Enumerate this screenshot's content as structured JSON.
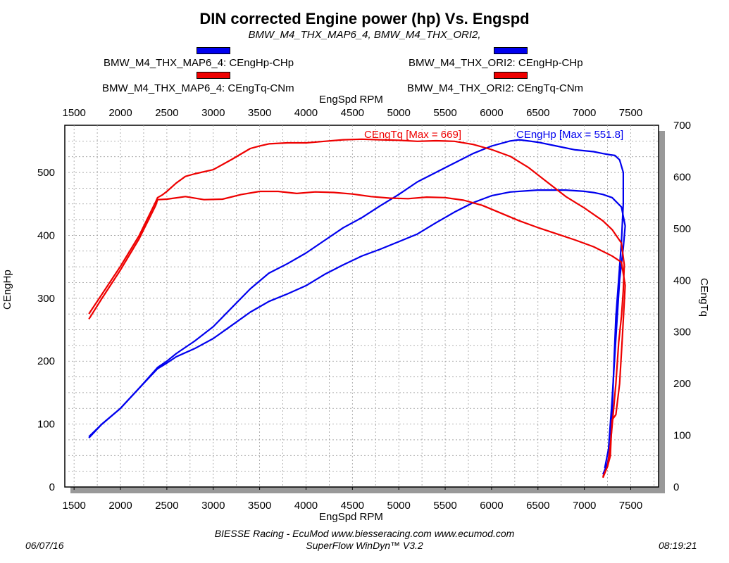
{
  "chart_data": {
    "type": "line",
    "title": "DIN corrected Engine power (hp) Vs. Engspd",
    "subtitle": "BMW_M4_THX_MAP6_4, BMW_M4_THX_ORI2,",
    "xlabel": "EngSpd RPM",
    "ylabel_left": "CEngHp",
    "ylabel_right": "CEngTq",
    "xlim": [
      1400,
      7800
    ],
    "ylim_left": [
      0,
      575
    ],
    "ylim_right": [
      0,
      700
    ],
    "x_ticks": [
      1500,
      2000,
      2500,
      3000,
      3500,
      4000,
      4500,
      5000,
      5500,
      6000,
      6500,
      7000,
      7500
    ],
    "y_ticks_left": [
      0,
      100,
      200,
      300,
      400,
      500
    ],
    "y_ticks_right": [
      0,
      100,
      200,
      300,
      400,
      500,
      600,
      700
    ],
    "grid": true,
    "legend": [
      {
        "label": "BMW_M4_THX_MAP6_4: CEngHp-CHp",
        "color": "#0000ee"
      },
      {
        "label": "BMW_M4_THX_MAP6_4: CEngTq-CNm",
        "color": "#ee0000"
      },
      {
        "label": "BMW_M4_THX_ORI2: CEngHp-CHp",
        "color": "#0000ee"
      },
      {
        "label": "BMW_M4_THX_ORI2: CEngTq-CNm",
        "color": "#ee0000"
      }
    ],
    "annotations": [
      {
        "text": "CEngTq [Max = 669]",
        "color": "#ee0000"
      },
      {
        "text": "CEngHp [Max = 551.8]",
        "color": "#0000ee"
      }
    ],
    "series": [
      {
        "axis": "left",
        "color": "#0000ee",
        "points": [
          [
            1660,
            80
          ],
          [
            1800,
            100
          ],
          [
            2000,
            125
          ],
          [
            2200,
            157
          ],
          [
            2400,
            190
          ],
          [
            2500,
            200
          ],
          [
            2600,
            212
          ],
          [
            2800,
            232
          ],
          [
            3000,
            255
          ],
          [
            3200,
            285
          ],
          [
            3400,
            315
          ],
          [
            3600,
            340
          ],
          [
            3800,
            355
          ],
          [
            4000,
            372
          ],
          [
            4200,
            392
          ],
          [
            4400,
            412
          ],
          [
            4600,
            428
          ],
          [
            4800,
            447
          ],
          [
            5000,
            465
          ],
          [
            5200,
            485
          ],
          [
            5400,
            500
          ],
          [
            5600,
            515
          ],
          [
            5800,
            530
          ],
          [
            6000,
            542
          ],
          [
            6200,
            550
          ],
          [
            6300,
            552
          ],
          [
            6500,
            548
          ],
          [
            6700,
            542
          ],
          [
            6900,
            536
          ],
          [
            7100,
            533
          ],
          [
            7200,
            530
          ],
          [
            7280,
            528
          ],
          [
            7330,
            527
          ],
          [
            7380,
            520
          ],
          [
            7420,
            500
          ],
          [
            7420,
            450
          ],
          [
            7400,
            390
          ],
          [
            7370,
            330
          ],
          [
            7340,
            270
          ],
          [
            7320,
            200
          ],
          [
            7300,
            120
          ],
          [
            7280,
            60
          ],
          [
            7250,
            38
          ],
          [
            7200,
            20
          ]
        ]
      },
      {
        "axis": "left",
        "color": "#0000ee",
        "points": [
          [
            1660,
            78
          ],
          [
            1800,
            100
          ],
          [
            2000,
            125
          ],
          [
            2200,
            157
          ],
          [
            2400,
            188
          ],
          [
            2500,
            197
          ],
          [
            2600,
            207
          ],
          [
            2800,
            220
          ],
          [
            3000,
            236
          ],
          [
            3200,
            257
          ],
          [
            3400,
            278
          ],
          [
            3600,
            295
          ],
          [
            3800,
            307
          ],
          [
            4000,
            320
          ],
          [
            4200,
            338
          ],
          [
            4400,
            353
          ],
          [
            4600,
            367
          ],
          [
            4800,
            378
          ],
          [
            5000,
            390
          ],
          [
            5200,
            402
          ],
          [
            5400,
            420
          ],
          [
            5600,
            437
          ],
          [
            5800,
            452
          ],
          [
            6000,
            463
          ],
          [
            6200,
            469
          ],
          [
            6500,
            472
          ],
          [
            6800,
            472
          ],
          [
            7000,
            470
          ],
          [
            7100,
            468
          ],
          [
            7200,
            465
          ],
          [
            7300,
            460
          ],
          [
            7400,
            445
          ],
          [
            7440,
            415
          ],
          [
            7420,
            380
          ],
          [
            7380,
            330
          ],
          [
            7350,
            260
          ],
          [
            7320,
            190
          ],
          [
            7300,
            140
          ],
          [
            7280,
            100
          ],
          [
            7260,
            60
          ],
          [
            7220,
            30
          ]
        ]
      },
      {
        "axis": "right",
        "color": "#ee0000",
        "points": [
          [
            1660,
            335
          ],
          [
            1800,
            373
          ],
          [
            2000,
            427
          ],
          [
            2200,
            486
          ],
          [
            2380,
            552
          ],
          [
            2400,
            560
          ],
          [
            2450,
            565
          ],
          [
            2500,
            572
          ],
          [
            2600,
            588
          ],
          [
            2700,
            601
          ],
          [
            2800,
            606
          ],
          [
            3000,
            614
          ],
          [
            3200,
            634
          ],
          [
            3400,
            655
          ],
          [
            3500,
            660
          ],
          [
            3600,
            664
          ],
          [
            3800,
            666
          ],
          [
            4000,
            666
          ],
          [
            4200,
            669
          ],
          [
            4400,
            672
          ],
          [
            4600,
            673
          ],
          [
            4800,
            672
          ],
          [
            5000,
            671
          ],
          [
            5200,
            669
          ],
          [
            5400,
            670
          ],
          [
            5600,
            669
          ],
          [
            5800,
            663
          ],
          [
            6000,
            653
          ],
          [
            6200,
            640
          ],
          [
            6400,
            618
          ],
          [
            6600,
            590
          ],
          [
            6800,
            562
          ],
          [
            7000,
            540
          ],
          [
            7200,
            515
          ],
          [
            7300,
            498
          ],
          [
            7400,
            472
          ],
          [
            7430,
            430
          ],
          [
            7420,
            380
          ],
          [
            7400,
            330
          ],
          [
            7370,
            280
          ],
          [
            7340,
            200
          ],
          [
            7310,
            140
          ],
          [
            7280,
            80
          ],
          [
            7250,
            40
          ],
          [
            7200,
            20
          ]
        ]
      },
      {
        "axis": "right",
        "color": "#ee0000",
        "points": [
          [
            1660,
            325
          ],
          [
            1800,
            365
          ],
          [
            2000,
            420
          ],
          [
            2200,
            480
          ],
          [
            2380,
            545
          ],
          [
            2400,
            556
          ],
          [
            2500,
            557
          ],
          [
            2700,
            562
          ],
          [
            2900,
            556
          ],
          [
            3100,
            557
          ],
          [
            3300,
            566
          ],
          [
            3500,
            572
          ],
          [
            3700,
            572
          ],
          [
            3900,
            568
          ],
          [
            4100,
            571
          ],
          [
            4300,
            570
          ],
          [
            4500,
            567
          ],
          [
            4700,
            562
          ],
          [
            4900,
            559
          ],
          [
            5100,
            558
          ],
          [
            5300,
            561
          ],
          [
            5500,
            560
          ],
          [
            5700,
            555
          ],
          [
            5900,
            545
          ],
          [
            6100,
            530
          ],
          [
            6300,
            515
          ],
          [
            6500,
            502
          ],
          [
            6700,
            490
          ],
          [
            6900,
            478
          ],
          [
            7100,
            465
          ],
          [
            7300,
            447
          ],
          [
            7400,
            435
          ],
          [
            7440,
            390
          ],
          [
            7410,
            290
          ],
          [
            7380,
            200
          ],
          [
            7340,
            140
          ],
          [
            7300,
            130
          ],
          [
            7290,
            100
          ],
          [
            7280,
            60
          ],
          [
            7250,
            40
          ],
          [
            7200,
            18
          ]
        ]
      }
    ]
  },
  "footer": {
    "credit": "BIESSE Racing - EcuMod www.biesseracing.com www.ecumod.com",
    "software": "SuperFlow WinDyn™ V3.2",
    "date": "06/07/16",
    "time": "08:19:21"
  }
}
